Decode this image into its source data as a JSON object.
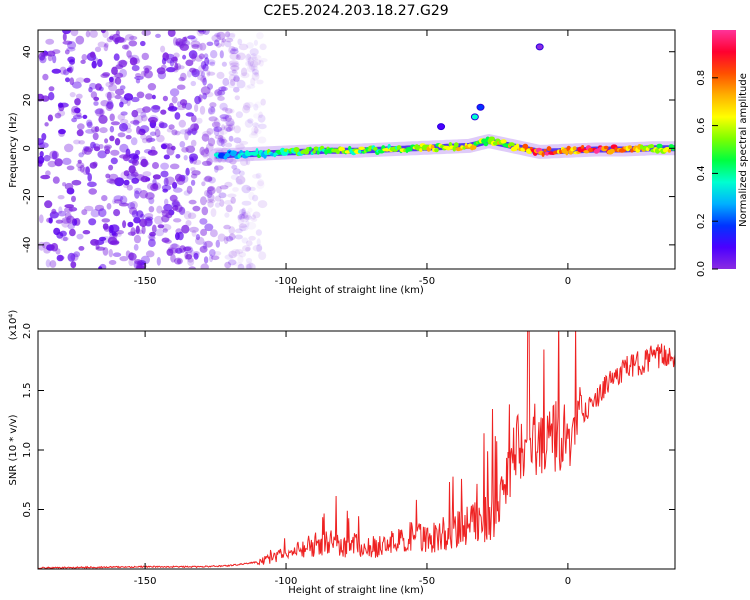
{
  "title": "C2E5.2024.203.18.27.G29",
  "colors": {
    "ridge": "#00dd44",
    "noise": "#7a1fe0",
    "snr_line": "#ee2222",
    "colorbar_stops": [
      "#8a2be2",
      "#4b00ff",
      "#0033ff",
      "#00b0ff",
      "#00ffd0",
      "#00ff40",
      "#7fff00",
      "#ffff00",
      "#ffb000",
      "#ff5000",
      "#ff0030",
      "#ff3399"
    ]
  },
  "chart_data": [
    {
      "type": "heatmap",
      "name": "spectrogram",
      "xlabel": "Height of straight line (km)",
      "ylabel": "Frequency (Hz)",
      "xlim": [
        -188,
        38
      ],
      "ylim": [
        -50,
        49
      ],
      "xticks": [
        -150,
        -100,
        -50,
        0
      ],
      "yticks": [
        -40,
        -20,
        0,
        20,
        40
      ],
      "colorbar": {
        "label": "Normalized spectral amplitude",
        "range": [
          0,
          1
        ],
        "ticks": [
          0.0,
          0.2,
          0.4,
          0.6,
          0.8
        ]
      },
      "ridge": {
        "x": [
          -125,
          -115,
          -105,
          -95,
          -85,
          -75,
          -65,
          -55,
          -45,
          -35,
          -28,
          -20,
          -10,
          0,
          10,
          20,
          30,
          38
        ],
        "frequency": [
          -3,
          -2.5,
          -2,
          -1.5,
          -1,
          -1,
          -0.5,
          0,
          0.5,
          1,
          3,
          1,
          -1.5,
          -1,
          -0.5,
          -0.5,
          0,
          0
        ],
        "amplitude": [
          0.25,
          0.35,
          0.4,
          0.45,
          0.5,
          0.5,
          0.5,
          0.55,
          0.6,
          0.6,
          0.55,
          0.6,
          0.9,
          0.7,
          0.95,
          0.7,
          0.6,
          0.55
        ]
      },
      "noise_region_x": [
        -188,
        -108
      ]
    },
    {
      "type": "line",
      "name": "snr",
      "xlabel": "Height of straight line (km)",
      "ylabel": "SNR (10 * v/v)",
      "scale_label": "(x10⁴)",
      "xlim": [
        -188,
        38
      ],
      "ylim": [
        0,
        2.0
      ],
      "xticks": [
        -150,
        -100,
        -50,
        0
      ],
      "yticks": [
        0.5,
        1.0,
        1.5,
        2.0
      ],
      "series": [
        {
          "x": [
            -188,
            -170,
            -150,
            -130,
            -120,
            -110,
            -105,
            -100,
            -95,
            -90,
            -85,
            -80,
            -75,
            -70,
            -65,
            -60,
            -55,
            -50,
            -45,
            -40,
            -35,
            -30,
            -25,
            -20,
            -18,
            -15,
            -10,
            -5,
            0,
            5,
            10,
            15,
            20,
            25,
            30,
            38
          ],
          "y": [
            0.01,
            0.015,
            0.02,
            0.02,
            0.03,
            0.06,
            0.1,
            0.15,
            0.18,
            0.22,
            0.25,
            0.2,
            0.22,
            0.2,
            0.22,
            0.25,
            0.3,
            0.28,
            0.32,
            0.35,
            0.4,
            0.45,
            0.55,
            0.9,
            1.1,
            1.05,
            1.1,
            1.15,
            1.2,
            1.3,
            1.45,
            1.6,
            1.7,
            1.75,
            1.8,
            1.82
          ]
        }
      ]
    }
  ]
}
